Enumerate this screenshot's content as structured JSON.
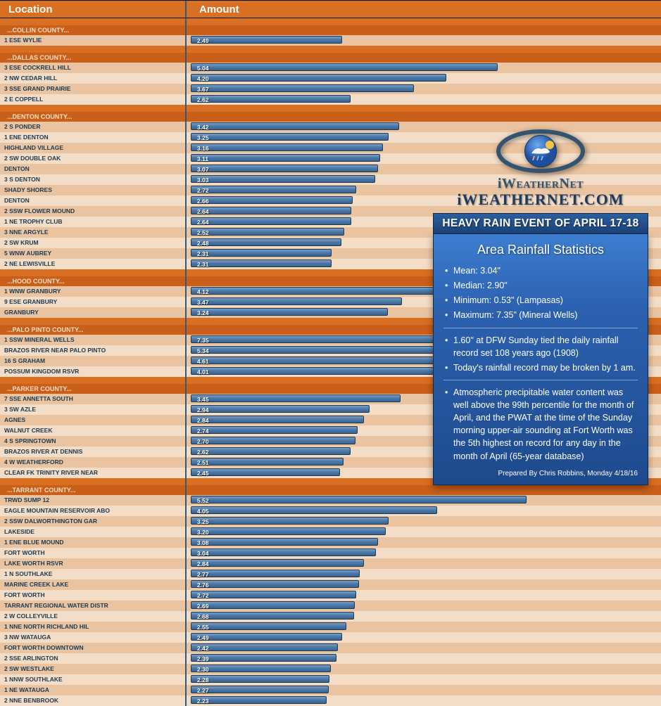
{
  "header": {
    "location": "Location",
    "amount": "Amount"
  },
  "chart": {
    "max_value": 7.4,
    "bar_pixel_range": 640,
    "bar_color_top": "#7a9cc4",
    "bar_color_mid": "#4a78a8",
    "bar_color_bot": "#3a6390",
    "row_even_bg": "#eac4a1",
    "row_odd_bg": "#f4ddc6",
    "county_bg": "#c95f19",
    "header_bg": "#d96f22"
  },
  "groups": [
    {
      "county": "...COLLIN COUNTY...",
      "rows": [
        {
          "loc": "1 ESE WYLIE",
          "val": 2.49
        }
      ]
    },
    {
      "county": "...DALLAS COUNTY...",
      "rows": [
        {
          "loc": "3 ESE COCKRELL HILL",
          "val": 5.04
        },
        {
          "loc": "2 NW CEDAR HILL",
          "val": 4.2
        },
        {
          "loc": "3 SSE GRAND PRAIRIE",
          "val": 3.67
        },
        {
          "loc": "2 E COPPELL",
          "val": 2.62
        }
      ]
    },
    {
      "county": "...DENTON COUNTY...",
      "rows": [
        {
          "loc": "2 S PONDER",
          "val": 3.42
        },
        {
          "loc": "1 ENE DENTON",
          "val": 3.25
        },
        {
          "loc": "HIGHLAND VILLAGE",
          "val": 3.16
        },
        {
          "loc": "2 SW DOUBLE OAK",
          "val": 3.11
        },
        {
          "loc": "DENTON",
          "val": 3.07
        },
        {
          "loc": "3 S DENTON",
          "val": 3.03
        },
        {
          "loc": "SHADY SHORES",
          "val": 2.72
        },
        {
          "loc": "DENTON",
          "val": 2.66
        },
        {
          "loc": "2 SSW FLOWER MOUND",
          "val": 2.64
        },
        {
          "loc": "1 NE TROPHY CLUB",
          "val": 2.64
        },
        {
          "loc": "3 NNE ARGYLE",
          "val": 2.52
        },
        {
          "loc": "2 SW KRUM",
          "val": 2.48
        },
        {
          "loc": "5 WNW AUBREY",
          "val": 2.31
        },
        {
          "loc": "2 NE LEWISVILLE",
          "val": 2.31
        }
      ]
    },
    {
      "county": "...HOOD COUNTY...",
      "rows": [
        {
          "loc": "1 WNW GRANBURY",
          "val": 4.12
        },
        {
          "loc": "9 ESE GRANBURY",
          "val": 3.47
        },
        {
          "loc": "GRANBURY",
          "val": 3.24
        }
      ]
    },
    {
      "county": "...PALO PINTO COUNTY...",
      "rows": [
        {
          "loc": "1 SSW MINERAL WELLS",
          "val": 7.35
        },
        {
          "loc": "BRAZOS RIVER NEAR PALO PINTO",
          "val": 5.34
        },
        {
          "loc": "16 S GRAHAM",
          "val": 4.61
        },
        {
          "loc": "POSSUM KINGDOM RSVR",
          "val": 4.01
        }
      ]
    },
    {
      "county": "...PARKER COUNTY...",
      "rows": [
        {
          "loc": "7 SSE ANNETTA SOUTH",
          "val": 3.45
        },
        {
          "loc": "3 SW AZLE",
          "val": 2.94
        },
        {
          "loc": "AGNES",
          "val": 2.84
        },
        {
          "loc": "WALNUT CREEK",
          "val": 2.74
        },
        {
          "loc": "4 S SPRINGTOWN",
          "val": 2.7
        },
        {
          "loc": "BRAZOS RIVER AT DENNIS",
          "val": 2.62
        },
        {
          "loc": "4 W WEATHERFORD",
          "val": 2.51
        },
        {
          "loc": "CLEAR FK TRINITY RIVER NEAR",
          "val": 2.45
        }
      ]
    },
    {
      "county": "...TARRANT COUNTY...",
      "rows": [
        {
          "loc": "TRWD SUMP 12",
          "val": 5.52
        },
        {
          "loc": "EAGLE MOUNTAIN RESERVOIR ABO",
          "val": 4.05
        },
        {
          "loc": "2 SSW DALWORTHINGTON GAR",
          "val": 3.25
        },
        {
          "loc": "LAKESIDE",
          "val": 3.2
        },
        {
          "loc": "1 ENE BLUE MOUND",
          "val": 3.08
        },
        {
          "loc": "FORT WORTH",
          "val": 3.04
        },
        {
          "loc": "LAKE WORTH RSVR",
          "val": 2.84
        },
        {
          "loc": "1 N SOUTHLAKE",
          "val": 2.77
        },
        {
          "loc": "MARINE CREEK LAKE",
          "val": 2.76
        },
        {
          "loc": "FORT WORTH",
          "val": 2.72
        },
        {
          "loc": "TARRANT REGIONAL WATER DISTR",
          "val": 2.69
        },
        {
          "loc": "2 W COLLEYVILLE",
          "val": 2.68
        },
        {
          "loc": "1 NNE NORTH RICHLAND HIL",
          "val": 2.55
        },
        {
          "loc": "3 NW WATAUGA",
          "val": 2.49
        },
        {
          "loc": "FORT WORTH DOWNTOWN",
          "val": 2.42
        },
        {
          "loc": "2 SSE ARLINGTON",
          "val": 2.39
        },
        {
          "loc": "2 SW WESTLAKE",
          "val": 2.3
        },
        {
          "loc": "1 NNW SOUTHLAKE",
          "val": 2.28
        },
        {
          "loc": "1 NE WATAUGA",
          "val": 2.27
        },
        {
          "loc": "2 NNE BENBROOK",
          "val": 2.23
        }
      ]
    }
  ],
  "overlay": {
    "logo_line1": "iWeatherNet",
    "logo_line2": "iWEATHERNET.COM",
    "banner": "HEAVY RAIN EVENT OF APRIL 17-18",
    "stats_title": "Area Rainfall Statistics",
    "bullets1": [
      "Mean: 3.04\"",
      "Median: 2.90\"",
      "Minimum: 0.53\" (Lampasas)",
      "Maximum: 7.35\" (Mineral Wells)"
    ],
    "bullets2": [
      "1.60\" at DFW Sunday tied the daily rainfall record set 108 years ago (1908)",
      "Today's rainfall record may be broken by 1 am."
    ],
    "bullets3": [
      "Atmospheric precipitable water content was well above the 99th percentile for the month of April, and the PWAT at the time of the Sunday morning upper-air sounding at Fort Worth was the 5th highest on record for any day in the month of April (65-year database)"
    ],
    "prepared": "Prepared By Chris Robbins, Monday 4/18/16"
  }
}
